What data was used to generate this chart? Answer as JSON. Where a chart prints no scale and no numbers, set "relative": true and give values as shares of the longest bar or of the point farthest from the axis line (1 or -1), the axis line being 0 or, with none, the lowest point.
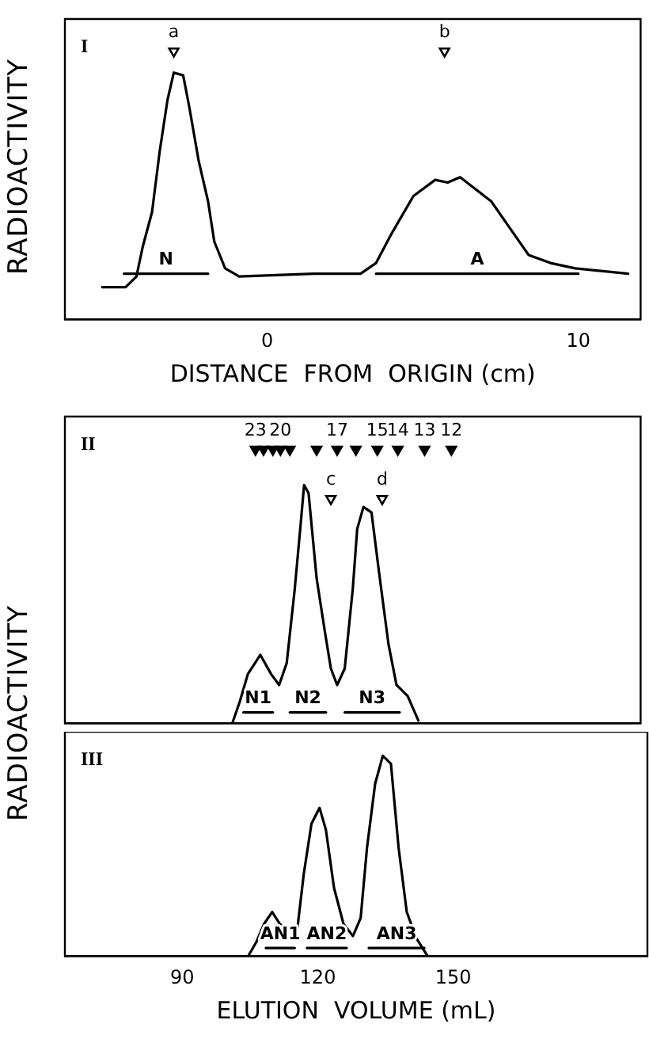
{
  "chart_data": [
    {
      "type": "line",
      "relative": true,
      "xlim": [
        -6.5,
        12
      ],
      "xticks": [
        0,
        10
      ],
      "xlabel": "DISTANCE  FROM  ORIGIN (cm)",
      "ylabel": "RADIOACTIVITY",
      "tick_labels": "x",
      "series": [
        {
          "color": "#000000",
          "x": [
            -5.3,
            -4.55,
            -4.2,
            -4.0,
            -3.7,
            -3.45,
            -3.2,
            -3.0,
            -2.7,
            -2.5,
            -2.2,
            -1.9,
            -1.7,
            -1.35,
            -0.9,
            1.5,
            3.0,
            3.5,
            4.0,
            4.7,
            5.4,
            5.8,
            6.2,
            7.2,
            7.8,
            8.4,
            9.1,
            9.9,
            11.6
          ],
          "values": [
            0.12,
            0.12,
            0.16,
            0.27,
            0.4,
            0.63,
            0.82,
            0.92,
            0.91,
            0.79,
            0.59,
            0.44,
            0.29,
            0.19,
            0.16,
            0.17,
            0.17,
            0.21,
            0.32,
            0.46,
            0.52,
            0.51,
            0.53,
            0.44,
            0.34,
            0.24,
            0.21,
            0.19,
            0.17
          ]
        },
        {
          "name": "N",
          "color": "#000000",
          "x": [
            -4.6,
            -1.9
          ],
          "values": [
            0.17,
            0.17
          ]
        },
        {
          "name": "A",
          "color": "#000000",
          "x": [
            3.5,
            10.0
          ],
          "values": [
            0.17,
            0.17
          ]
        },
        {
          "type": "scatter",
          "marker": "triangle",
          "color": "#ffffff",
          "x": [
            -3.0,
            5.7
          ],
          "values": [
            1,
            1
          ]
        }
      ],
      "annotations": [
        "I",
        {
          "text": "a",
          "x": -3.0,
          "y": 1
        },
        {
          "text": "b",
          "x": 5.7,
          "y": 1
        }
      ]
    },
    {
      "type": "line",
      "relative": true,
      "xlim": [
        64,
        193
      ],
      "tick_labels": false,
      "ylabel": "RADIOACTIVITY",
      "series": [
        {
          "color": "#000000",
          "x": [
            101.5,
            103.2,
            105,
            107.8,
            110.2,
            112,
            113.7,
            115.5,
            116.9,
            117.6,
            118.6,
            120.4,
            122.2,
            123.6,
            125,
            126.7,
            128.5,
            129.5,
            130.9,
            132.7,
            134.4,
            136.5,
            138.3,
            140.8,
            143.2
          ],
          "values": [
            0,
            0.08,
            0.18,
            0.25,
            0.18,
            0.14,
            0.22,
            0.49,
            0.74,
            0.87,
            0.84,
            0.53,
            0.34,
            0.2,
            0.14,
            0.2,
            0.49,
            0.71,
            0.79,
            0.77,
            0.55,
            0.29,
            0.14,
            0.1,
            0.01
          ]
        },
        {
          "name": "N1",
          "color": "#000000",
          "x": [
            104,
            110.6
          ],
          "values": [
            0.04,
            0.04
          ]
        },
        {
          "name": "N2",
          "color": "#000000",
          "x": [
            114.4,
            122.5
          ],
          "values": [
            0.04,
            0.04
          ]
        },
        {
          "name": "N3",
          "color": "#000000",
          "x": [
            126.7,
            139
          ],
          "values": [
            0.04,
            0.04
          ]
        },
        {
          "type": "scatter",
          "marker": "triangle",
          "color": "#000000",
          "x": [
            106.7,
            108.5,
            110.6,
            112.3,
            114.4,
            120.4,
            125,
            129.2,
            134,
            138.6,
            144.6,
            150.6
          ],
          "values": [
            1,
            1,
            1,
            1,
            1,
            1,
            1,
            1,
            1,
            1,
            1,
            1
          ]
        },
        {
          "type": "scatter",
          "marker": "triangle",
          "color": "#ffffff",
          "x": [
            123.6,
            135.1
          ],
          "values": [
            0.82,
            0.82
          ]
        }
      ],
      "annotations": [
        "II",
        {
          "text": "23",
          "x": 106.7,
          "y": 1
        },
        {
          "text": "20",
          "x": 112.3,
          "y": 1
        },
        {
          "text": "17",
          "x": 125,
          "y": 1
        },
        {
          "text": "15",
          "x": 134,
          "y": 1
        },
        {
          "text": "14",
          "x": 138.6,
          "y": 1
        },
        {
          "text": "13",
          "x": 144.6,
          "y": 1
        },
        {
          "text": "12",
          "x": 150.6,
          "y": 1
        },
        {
          "text": "c",
          "x": 123.6,
          "y": 0.82
        },
        {
          "text": "d",
          "x": 135.1,
          "y": 0.82
        }
      ]
    },
    {
      "type": "line",
      "relative": true,
      "xlim": [
        64,
        193
      ],
      "xticks": [
        90,
        120,
        150
      ],
      "xlabel": "ELUTION  VOLUME (mL)",
      "tick_labels": "x",
      "series": [
        {
          "color": "#000000",
          "x": [
            104.6,
            106.4,
            108.1,
            109.9,
            111.6,
            113.4,
            115.5,
            116.9,
            118.6,
            120.4,
            121.8,
            123.6,
            125.7,
            127.8,
            129.5,
            130.9,
            132.7,
            134.4,
            136.2,
            137.9,
            139.7,
            141.8,
            144.3
          ],
          "values": [
            0,
            0.07,
            0.16,
            0.22,
            0.16,
            0.13,
            0.14,
            0.41,
            0.66,
            0.74,
            0.63,
            0.34,
            0.16,
            0.1,
            0.19,
            0.54,
            0.86,
            1.0,
            0.96,
            0.54,
            0.22,
            0.09,
            0
          ]
        },
        {
          "name": "AN1",
          "color": "#000000",
          "x": [
            108.5,
            114.9
          ],
          "values": [
            0.04,
            0.04
          ]
        },
        {
          "name": "AN2",
          "color": "#000000",
          "x": [
            117.6,
            126.4
          ],
          "values": [
            0.04,
            0.04
          ]
        },
        {
          "name": "AN3",
          "color": "#000000",
          "x": [
            131.3,
            143.6
          ],
          "values": [
            0.04,
            0.04
          ]
        }
      ],
      "annotations": [
        "III"
      ]
    }
  ]
}
